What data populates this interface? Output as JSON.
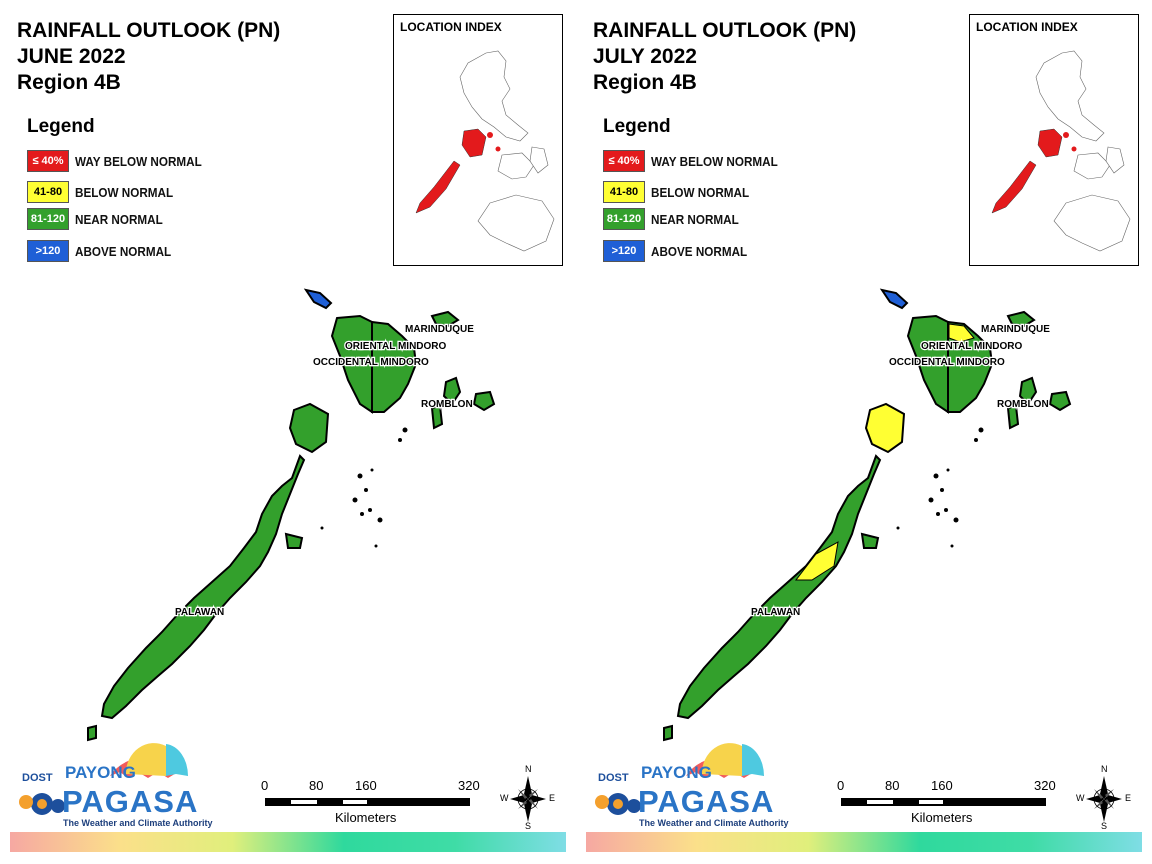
{
  "panels": [
    {
      "title_line1": "RAINFALL OUTLOOK (PN)",
      "title_line2": "JUNE 2022",
      "title_line3": "Region 4B",
      "legend_title": "Legend",
      "legend": [
        {
          "swatch": "≤ 40%",
          "label": "WAY BELOW NORMAL",
          "color": "#e31a1c"
        },
        {
          "swatch": "41-80",
          "label": "BELOW NORMAL",
          "color": "#ffff33"
        },
        {
          "swatch": "81-120",
          "label": "NEAR NORMAL",
          "color": "#33a02c"
        },
        {
          "swatch": ">120",
          "label": "ABOVE NORMAL",
          "color": "#1f5fd6"
        }
      ],
      "location_index_title": "LOCATION INDEX",
      "region_labels": {
        "marinduque": "MARINDUQUE",
        "oriental_mindoro": "ORIENTAL MINDORO",
        "occidental_mindoro": "OCCIDENTAL MINDORO",
        "romblon": "ROMBLON",
        "palawan": "PALAWAN"
      },
      "region_categories": {
        "marinduque": "NEAR NORMAL",
        "oriental_mindoro": "NEAR NORMAL",
        "occidental_mindoro": "NEAR NORMAL",
        "romblon": "NEAR NORMAL",
        "palawan": "NEAR NORMAL",
        "lubang_island": "ABOVE NORMAL"
      },
      "logo": {
        "dost": "DOST",
        "payong": "PAYONG",
        "pagasa": "PAGASA",
        "tagline": "The Weather and Climate Authority"
      },
      "scale": {
        "ticks": [
          "0",
          "80",
          "160",
          "320"
        ],
        "unit": "Kilometers"
      },
      "compass": {
        "n": "N",
        "s": "S",
        "e": "E",
        "w": "W"
      }
    },
    {
      "title_line1": "RAINFALL OUTLOOK (PN)",
      "title_line2": "JULY 2022",
      "title_line3": "Region 4B",
      "legend_title": "Legend",
      "legend": [
        {
          "swatch": "≤ 40%",
          "label": "WAY BELOW NORMAL",
          "color": "#e31a1c"
        },
        {
          "swatch": "41-80",
          "label": "BELOW NORMAL",
          "color": "#ffff33"
        },
        {
          "swatch": "81-120",
          "label": "NEAR NORMAL",
          "color": "#33a02c"
        },
        {
          "swatch": ">120",
          "label": "ABOVE NORMAL",
          "color": "#1f5fd6"
        }
      ],
      "location_index_title": "LOCATION INDEX",
      "region_labels": {
        "marinduque": "MARINDUQUE",
        "oriental_mindoro": "ORIENTAL MINDORO",
        "occidental_mindoro": "OCCIDENTAL MINDORO",
        "romblon": "ROMBLON",
        "palawan": "PALAWAN"
      },
      "region_categories": {
        "marinduque": "NEAR NORMAL",
        "oriental_mindoro": "NEAR NORMAL (part BELOW NORMAL)",
        "occidental_mindoro": "NEAR NORMAL",
        "romblon": "NEAR NORMAL",
        "palawan": "NEAR NORMAL (parts BELOW NORMAL)",
        "lubang_island": "ABOVE NORMAL"
      },
      "logo": {
        "dost": "DOST",
        "payong": "PAYONG",
        "pagasa": "PAGASA",
        "tagline": "The Weather and Climate Authority"
      },
      "scale": {
        "ticks": [
          "0",
          "80",
          "160",
          "320"
        ],
        "unit": "Kilometers"
      },
      "compass": {
        "n": "N",
        "s": "S",
        "e": "E",
        "w": "W"
      }
    }
  ]
}
